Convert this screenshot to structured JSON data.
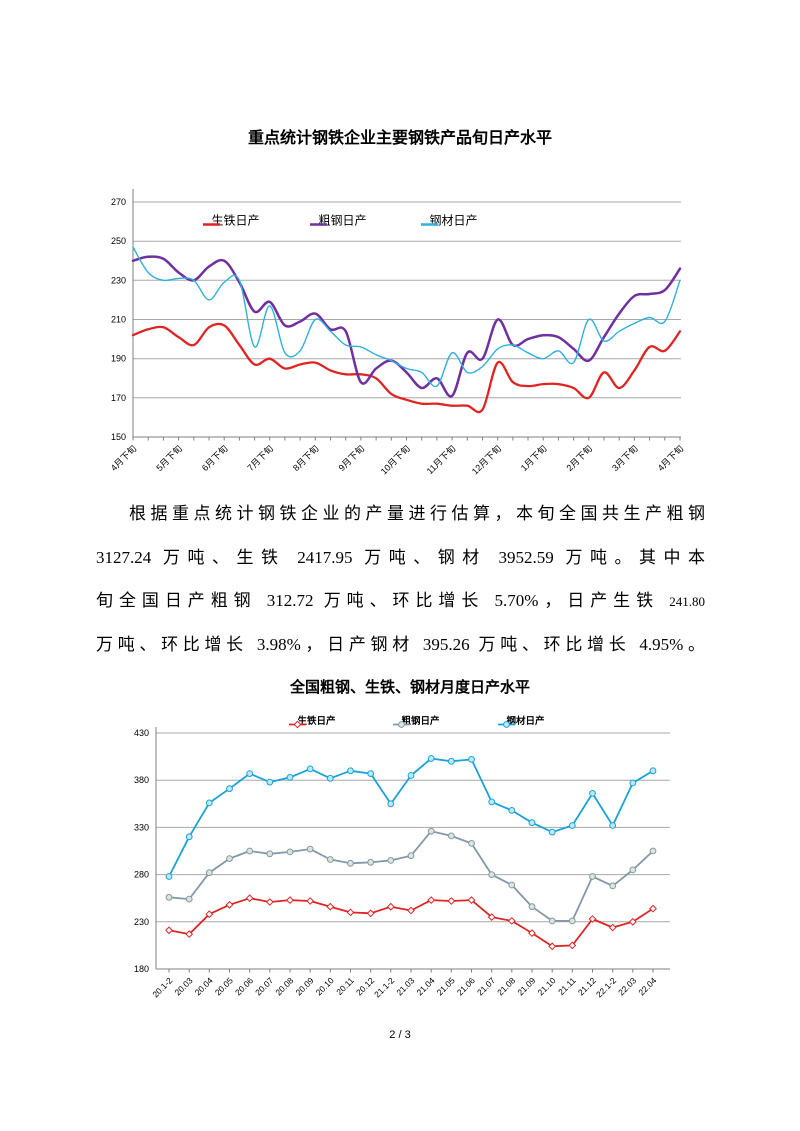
{
  "page": {
    "footer": "2 / 3"
  },
  "paragraph": {
    "l1": "根据重点统计钢铁企业的产量进行估算，本旬全国共生产粗钢",
    "l2": "3127.24 万吨、生铁 2417.95 万吨、钢材 3952.59 万吨。其中本",
    "l3": "旬全国日产粗钢 312.72 万吨、环比增长 5.70%，日产生铁 ",
    "l3_small": "241.80",
    "l4": "万吨、环比增长 3.98%，日产钢材 395.26 万吨、环比增长 4.95%。"
  },
  "chart_data": [
    {
      "type": "line",
      "title": "重点统计钢铁企业主要钢铁产品旬日产水平",
      "x_tick_labels": [
        "4月下旬",
        "5月下旬",
        "6月下旬",
        "7月下旬",
        "8月下旬",
        "9月下旬",
        "10月下旬",
        "11月下旬",
        "12月下旬",
        "1月下旬",
        "2月下旬",
        "3月下旬",
        "4月下旬"
      ],
      "label_every": 3,
      "n_points": 37,
      "ylim": [
        150,
        270
      ],
      "yticks": [
        150,
        170,
        190,
        210,
        230,
        250,
        270
      ],
      "grid": true,
      "legend_position": "top-inside",
      "smooth": true,
      "series": [
        {
          "name": "生铁日产",
          "color": "#e02424",
          "width": 2.3,
          "marker": "none",
          "values": [
            202,
            205,
            206,
            201,
            197,
            206,
            207,
            197,
            187,
            190,
            185,
            187,
            188,
            184,
            182,
            182,
            180,
            172,
            169,
            167,
            167,
            166,
            166,
            164,
            188,
            178,
            176,
            177,
            177,
            175,
            170,
            183,
            175,
            184,
            196,
            194,
            204
          ]
        },
        {
          "name": "粗钢日产",
          "color": "#7030a0",
          "width": 2.5,
          "marker": "none",
          "values": [
            240,
            242,
            241,
            234,
            230,
            237,
            240,
            229,
            214,
            219,
            207,
            209,
            213,
            205,
            204,
            178,
            185,
            189,
            183,
            175,
            180,
            171,
            193,
            190,
            210,
            197,
            200,
            202,
            201,
            195,
            189,
            201,
            213,
            222,
            223,
            225,
            236
          ]
        },
        {
          "name": "钢材日产",
          "color": "#2fb0de",
          "width": 1.4,
          "marker": "none",
          "values": [
            247,
            234,
            230,
            231,
            230,
            220,
            229,
            230,
            196,
            217,
            193,
            194,
            210,
            204,
            197,
            196,
            192,
            189,
            185,
            183,
            176,
            193,
            183,
            186,
            195,
            197,
            193,
            190,
            194,
            188,
            210,
            199,
            204,
            208,
            211,
            209,
            230
          ]
        }
      ]
    },
    {
      "type": "line",
      "title": "全国粗钢、生铁、钢材月度日产水平",
      "categories": [
        "20.1-2",
        "20.03",
        "20.04",
        "20.05",
        "20.06",
        "20.07",
        "20.08",
        "20.09",
        "20.10",
        "20.11",
        "20.12",
        "21.1-2",
        "21.03",
        "21.04",
        "21.05",
        "21.06",
        "21.07",
        "21.08",
        "21.09",
        "21.10",
        "21.11",
        "21.12",
        "22.1-2",
        "22.03",
        "22.04"
      ],
      "ylim": [
        180,
        430
      ],
      "yticks": [
        180,
        230,
        280,
        330,
        380,
        430
      ],
      "grid": true,
      "legend_position": "top",
      "smooth": false,
      "series": [
        {
          "name": "生铁日产",
          "color": "#e02424",
          "width": 1.8,
          "marker": "diamond",
          "marker_fill": "#ffffff",
          "values": [
            221,
            217,
            238,
            248,
            255,
            251,
            253,
            252,
            246,
            240,
            239,
            246,
            242,
            253,
            252,
            253,
            235,
            231,
            218,
            204,
            205,
            233,
            224,
            230,
            244
          ]
        },
        {
          "name": "粗钢日产",
          "color": "#8497ab",
          "width": 1.8,
          "marker": "circle",
          "marker_fill": "#d9e8d2",
          "values": [
            256,
            254,
            282,
            297,
            305,
            302,
            304,
            307,
            296,
            292,
            293,
            295,
            300,
            326,
            321,
            313,
            280,
            269,
            246,
            231,
            231,
            278,
            268,
            285,
            305
          ]
        },
        {
          "name": "钢材日产",
          "color": "#1aa3d8",
          "width": 1.8,
          "marker": "circle",
          "marker_fill": "#bfe7f5",
          "values": [
            278,
            320,
            356,
            371,
            387,
            378,
            383,
            392,
            382,
            390,
            387,
            355,
            385,
            403,
            400,
            402,
            357,
            348,
            335,
            325,
            332,
            366,
            332,
            377,
            390
          ]
        }
      ]
    }
  ]
}
